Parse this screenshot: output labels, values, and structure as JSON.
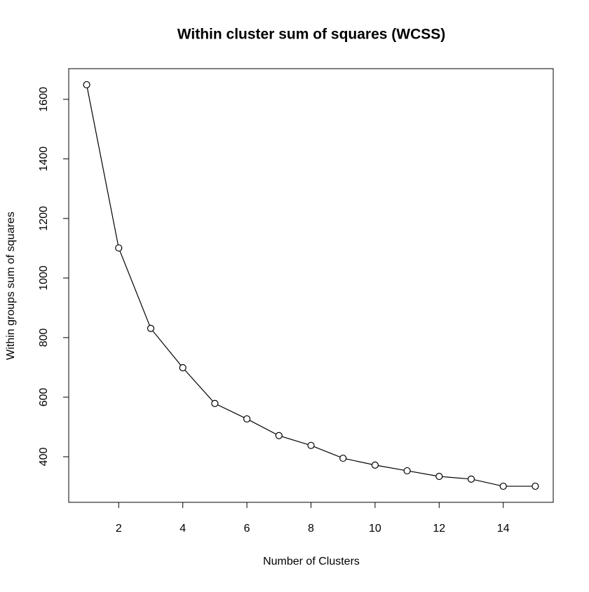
{
  "chart_data": {
    "type": "line",
    "title": "Within cluster sum of squares (WCSS)",
    "x_label": "Number of Clusters",
    "y_label": "Within groups sum of squares",
    "x": [
      1,
      2,
      3,
      4,
      5,
      6,
      7,
      8,
      9,
      10,
      11,
      12,
      13,
      14,
      15
    ],
    "values": [
      1649,
      1101,
      831,
      699,
      579,
      527,
      471,
      438,
      395,
      372,
      353,
      334,
      325,
      301,
      301
    ],
    "color": "#000000",
    "xlim": [
      0.44,
      15.56
    ],
    "xticks": [
      2,
      4,
      6,
      8,
      10,
      12,
      14
    ],
    "ylim": [
      247,
      1703
    ],
    "yticks": [
      400,
      600,
      800,
      1000,
      1200,
      1400,
      1600
    ]
  }
}
